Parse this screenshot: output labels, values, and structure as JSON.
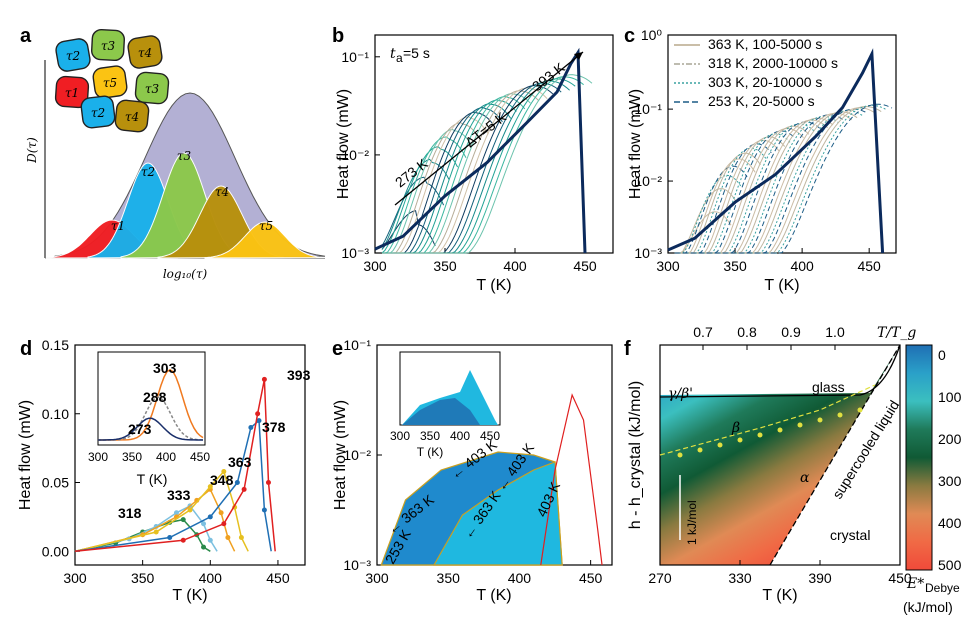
{
  "panels": {
    "a": {
      "letter": "a",
      "ylabel": "D(τ)",
      "xlabel": "log₁₀(τ)",
      "tau_labels": [
        "τ2",
        "τ3",
        "τ4",
        "τ1",
        "τ5",
        "τ3",
        "τ2",
        "τ4"
      ],
      "peak_labels": [
        "τ1",
        "τ2",
        "τ3",
        "τ4",
        "τ5"
      ],
      "colors": {
        "envelope": "#b3b0d4",
        "t1": "#f01e23",
        "t2": "#1ab0ea",
        "t3": "#8cc84b",
        "t4": "#b8900c",
        "t5": "#fbc313"
      }
    },
    "b": {
      "letter": "b",
      "annotation_ta": "t",
      "annotation_ta_sub": "a",
      "annotation_ta_value": "=5 s",
      "label_273": "273 K",
      "label_393": "393 K",
      "label_dT": "ΔT=5 K"
    },
    "c": {
      "letter": "c",
      "legend": [
        "363 K, 100-5000 s",
        "318 K, 2000-10000 s",
        "303 K, 20-10000 s",
        "253 K, 20-5000 s"
      ]
    },
    "d": {
      "letter": "d",
      "peak_labels": [
        "318",
        "333",
        "348",
        "363",
        "378",
        "393"
      ],
      "inset_labels": [
        "303",
        "288",
        "273"
      ]
    },
    "e": {
      "letter": "e",
      "labels": [
        "253 K",
        "363 K",
        "403 K",
        "363 K",
        "403 K",
        "403 K"
      ]
    },
    "f": {
      "letter": "f",
      "region_labels": {
        "glass": "glass",
        "gb": "γ/β'",
        "beta": "β",
        "alpha": "α",
        "liquid": "supercooled liquid",
        "crystal": "crystal",
        "scale": "1 kJ/mol"
      },
      "colorbar_title": "E*",
      "colorbar_sub": "Debye",
      "colorbar_unit": "(kJ/mol)"
    }
  },
  "chart_data": [
    {
      "type": "area",
      "panel": "a",
      "title": "",
      "xlabel": "log₁₀(τ)",
      "ylabel": "D(τ)",
      "series": [
        {
          "name": "τ1",
          "peak": 0.2
        },
        {
          "name": "τ2",
          "peak": 0.52
        },
        {
          "name": "τ3",
          "peak": 0.58
        },
        {
          "name": "τ4",
          "peak": 0.39
        },
        {
          "name": "τ5",
          "peak": 0.19
        }
      ]
    },
    {
      "type": "line",
      "panel": "b",
      "xlabel": "T (K)",
      "ylabel": "Heat flow (mW)",
      "xlim": [
        300,
        470
      ],
      "ylim": [
        0.001,
        0.2
      ],
      "yscale": "log",
      "xticks": [
        "300",
        "350",
        "400",
        "450"
      ],
      "yticks": [
        "10⁻³",
        "10⁻²",
        "10⁻¹"
      ],
      "series": [
        {
          "name": "",
          "x": [
            300,
            320,
            350,
            380,
            410,
            430,
            440,
            445,
            450
          ],
          "y": [
            0.0011,
            0.0015,
            0.004,
            0.009,
            0.025,
            0.05,
            0.1,
            0.13,
            0.001
          ]
        }
      ]
    },
    {
      "type": "line",
      "panel": "c",
      "xlabel": "T (K)",
      "ylabel": "Heat flow (mW)",
      "xlim": [
        300,
        470
      ],
      "ylim": [
        0.001,
        1
      ],
      "yscale": "log",
      "xticks": [
        "300",
        "350",
        "400",
        "450"
      ],
      "yticks": [
        "10⁻³",
        "10⁻²",
        "10⁻¹",
        "10⁰"
      ],
      "series": [
        {
          "name": "",
          "x": [
            300,
            320,
            350,
            380,
            410,
            430,
            445,
            452,
            460
          ],
          "y": [
            0.0011,
            0.0016,
            0.005,
            0.012,
            0.04,
            0.1,
            0.3,
            0.55,
            0.001
          ]
        }
      ]
    },
    {
      "type": "line",
      "panel": "d",
      "xlabel": "T (K)",
      "ylabel": "Heat flow (mW)",
      "xlim": [
        300,
        470
      ],
      "ylim": [
        -0.01,
        0.15
      ],
      "xticks": [
        "300",
        "350",
        "400",
        "450"
      ],
      "yticks": [
        "0.00",
        "0.05",
        "0.10",
        "0.15"
      ],
      "series": [
        {
          "name": "318",
          "x": [
            300,
            330,
            350,
            370,
            380,
            390,
            395,
            400
          ],
          "y": [
            0,
            0.006,
            0.014,
            0.021,
            0.023,
            0.012,
            0.003,
            0
          ]
        },
        {
          "name": "333",
          "x": [
            300,
            340,
            360,
            375,
            385,
            395,
            400,
            405
          ],
          "y": [
            0,
            0.009,
            0.018,
            0.028,
            0.033,
            0.02,
            0.008,
            0
          ]
        },
        {
          "name": "348",
          "x": [
            300,
            350,
            375,
            390,
            400,
            408,
            413,
            418
          ],
          "y": [
            0,
            0.012,
            0.025,
            0.037,
            0.045,
            0.028,
            0.01,
            0
          ]
        },
        {
          "name": "363",
          "x": [
            300,
            360,
            385,
            400,
            410,
            418,
            423,
            428
          ],
          "y": [
            0,
            0.014,
            0.03,
            0.047,
            0.058,
            0.032,
            0.01,
            0
          ]
        },
        {
          "name": "378",
          "x": [
            300,
            370,
            400,
            420,
            430,
            436,
            440,
            445
          ],
          "y": [
            0,
            0.01,
            0.025,
            0.05,
            0.09,
            0.095,
            0.03,
            0
          ]
        },
        {
          "name": "393",
          "x": [
            300,
            380,
            410,
            425,
            435,
            440,
            443,
            448
          ],
          "y": [
            0,
            0.008,
            0.02,
            0.045,
            0.1,
            0.125,
            0.05,
            0
          ]
        }
      ]
    },
    {
      "type": "area",
      "panel": "e",
      "xlabel": "T (K)",
      "ylabel": "Heat flow (mW)",
      "xlim": [
        300,
        465
      ],
      "ylim": [
        0.001,
        0.1
      ],
      "yscale": "log",
      "xticks": [
        "300",
        "350",
        "400",
        "450"
      ],
      "yticks": [
        "10⁻³",
        "10⁻²",
        "10⁻¹"
      ],
      "inset_xticks": [
        "300",
        "350",
        "400",
        "450"
      ],
      "inset_xlabel": "T (K)"
    },
    {
      "type": "heatmap",
      "panel": "f",
      "xlabel": "T (K)",
      "ylabel": "h - h_crystal (kJ/mol)",
      "top_xlabel": "T/T_g",
      "xticks": [
        "270",
        "330",
        "390",
        "450"
      ],
      "top_xticks": [
        "0.7",
        "0.8",
        "0.9",
        "1.0"
      ],
      "colorbar_ticks": [
        "0",
        "100",
        "200",
        "300",
        "400",
        "500"
      ],
      "colorbar_colors": [
        "#1f6fb4",
        "#2aa0c8",
        "#3bbfbf",
        "#1f7a5a",
        "#105a35",
        "#8a7a40",
        "#e08a55",
        "#f06a45",
        "#f04a3a"
      ]
    }
  ]
}
